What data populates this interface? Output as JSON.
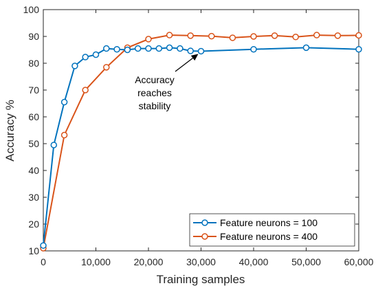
{
  "chart_data": {
    "type": "line",
    "xlabel": "Training samples",
    "ylabel": "Accuracy %",
    "xlim": [
      0,
      60000
    ],
    "ylim": [
      10,
      100
    ],
    "xticks": [
      0,
      10000,
      20000,
      30000,
      40000,
      50000,
      60000
    ],
    "xtick_labels": [
      "0",
      "10,000",
      "20,000",
      "30,000",
      "40,000",
      "50,000",
      "60,000"
    ],
    "yticks": [
      10,
      20,
      30,
      40,
      50,
      60,
      70,
      80,
      90,
      100
    ],
    "ytick_labels": [
      "10",
      "20",
      "30",
      "40",
      "50",
      "60",
      "70",
      "80",
      "90",
      "100"
    ],
    "grid": false,
    "legend_position": "bottom-right",
    "series": [
      {
        "name": "Feature neurons = 100",
        "color": "#0072BD",
        "marker": "circle",
        "x": [
          0,
          2000,
          4000,
          6000,
          8000,
          10000,
          12000,
          14000,
          16000,
          18000,
          20000,
          22000,
          24000,
          26000,
          28000,
          30000,
          40000,
          50000,
          60000
        ],
        "y": [
          12,
          49.5,
          65.5,
          79,
          82.3,
          83.2,
          85.5,
          85.2,
          85,
          85.5,
          85.5,
          85.5,
          85.8,
          85.5,
          84.6,
          84.5,
          85.2,
          85.8,
          85.2
        ]
      },
      {
        "name": "Feature neurons = 400",
        "color": "#D95319",
        "marker": "circle",
        "x": [
          0,
          4000,
          8000,
          12000,
          16000,
          20000,
          24000,
          28000,
          32000,
          36000,
          40000,
          44000,
          48000,
          52000,
          56000,
          60000
        ],
        "y": [
          11,
          53.2,
          70,
          78.5,
          85.8,
          89,
          90.5,
          90.3,
          90.1,
          89.5,
          90,
          90.3,
          89.8,
          90.5,
          90.3,
          90.4
        ]
      }
    ],
    "annotation": {
      "lines": [
        "Accuracy",
        "reaches",
        "stability"
      ],
      "arrow_target": [
        30000,
        84.5
      ]
    }
  }
}
